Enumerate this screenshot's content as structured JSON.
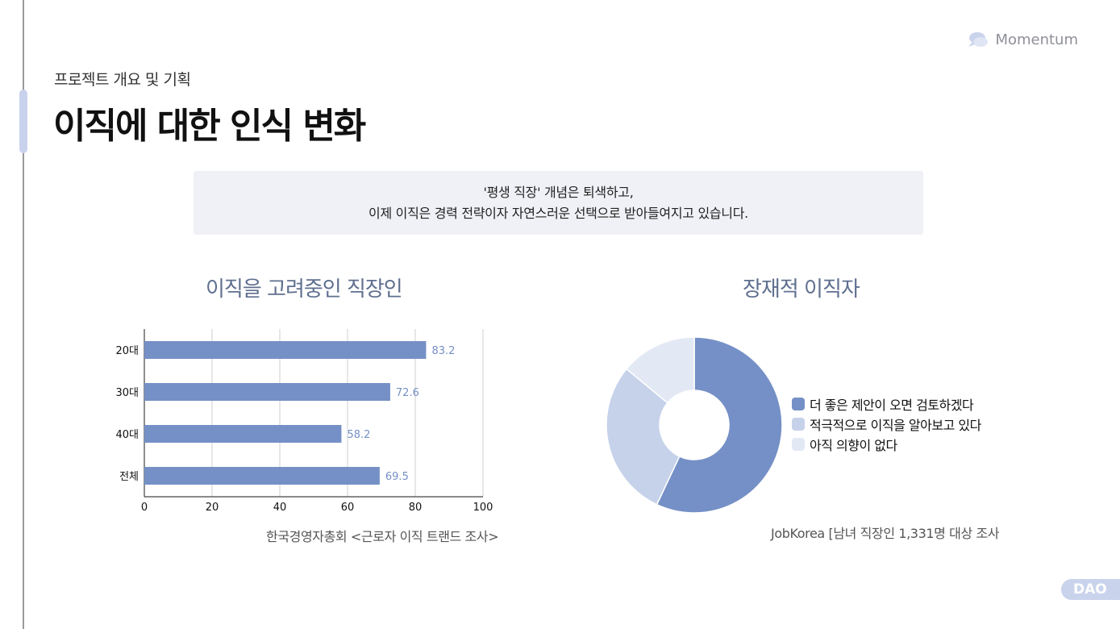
{
  "brand": {
    "name": "Momentum",
    "icon": "cloud-chat-icon"
  },
  "header": {
    "subtitle": "프로젝트 개요 및 기획",
    "title": "이직에 대한 인식 변화"
  },
  "quote": {
    "line1": "'평생 직장' 개념은 퇴색하고,",
    "line2": "이제 이직은 경력 전략이자 자연스러운 선택으로 받아들여지고 있습니다."
  },
  "footer_badge": "DAO",
  "colors": {
    "primary": "#7590c6",
    "secondary": "#c6d2ea",
    "tertiary": "#e3e8f5",
    "title": "#5f6f8f"
  },
  "chart_data": [
    {
      "type": "bar",
      "orientation": "horizontal",
      "title": "이직을 고려중인 직장인",
      "categories": [
        "20대",
        "30대",
        "40대",
        "전체"
      ],
      "values": [
        83.2,
        72.6,
        58.2,
        69.5
      ],
      "value_labels": [
        "83.2",
        "72.6",
        "58.2",
        "69.5"
      ],
      "xlim": [
        0,
        100
      ],
      "xticks": [
        0,
        20,
        40,
        60,
        80,
        100
      ],
      "grid": "vertical",
      "source": "한국경영자총회 <근로자 이직 트랜드 조사>"
    },
    {
      "type": "pie",
      "style": "donut",
      "title": "장재적 이직자",
      "categories": [
        "더 좋은 제안이 오면 검토하겠다",
        "적극적으로 이직을 알아보고 있다",
        "아직 의향이 없다"
      ],
      "values": [
        57,
        29,
        14
      ],
      "colors": [
        "#7590c6",
        "#c6d2ea",
        "#e3e8f5"
      ],
      "legend": "right",
      "source": "JobKorea [남녀 직장인 1,331명 대상 조사"
    }
  ]
}
